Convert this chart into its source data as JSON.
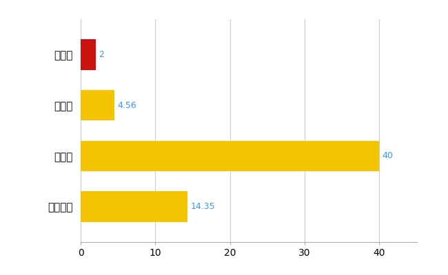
{
  "categories": [
    "全国平均",
    "県最大",
    "県平均",
    "斑鳩町"
  ],
  "values": [
    14.35,
    40,
    4.56,
    2
  ],
  "bar_colors": [
    "#F5C400",
    "#F5C400",
    "#F5C400",
    "#CC1111"
  ],
  "value_labels": [
    "14.35",
    "40",
    "4.56",
    "2"
  ],
  "label_color": "#3399FF",
  "xlim": [
    0,
    45
  ],
  "xticks": [
    0,
    10,
    20,
    30,
    40
  ],
  "background_color": "#FFFFFF",
  "grid_color": "#CCCCCC",
  "bar_height": 0.6,
  "figsize": [
    6.5,
    4.0
  ],
  "dpi": 100,
  "label_fontsize": 9,
  "tick_fontsize": 10,
  "ytick_fontsize": 11
}
